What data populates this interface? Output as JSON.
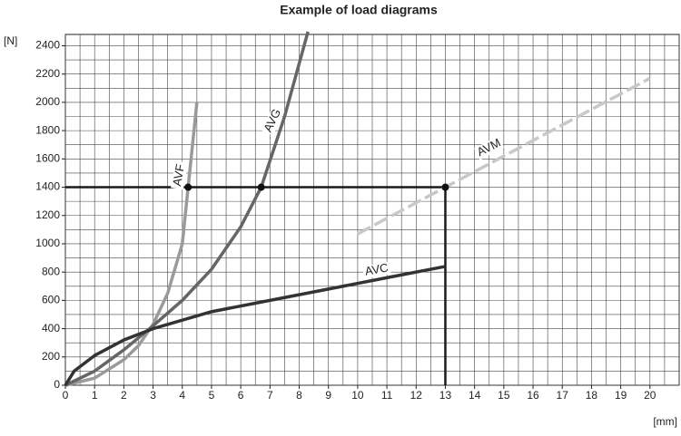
{
  "chart_data": {
    "type": "line",
    "title": "Example of load diagrams",
    "y_label": "[N]",
    "x_label": "[mm]",
    "xlim": [
      0,
      21
    ],
    "ylim": [
      0,
      2480
    ],
    "xticks": [
      0,
      1,
      2,
      3,
      4,
      5,
      6,
      7,
      8,
      9,
      10,
      11,
      12,
      13,
      14,
      15,
      16,
      17,
      18,
      19,
      20
    ],
    "yticks": [
      0,
      200,
      400,
      600,
      800,
      1000,
      1200,
      1400,
      1600,
      1800,
      2000,
      2200,
      2400
    ],
    "grid": true,
    "minor_grid": {
      "x": 0.5,
      "y": 100
    },
    "series": [
      {
        "name": "AVF",
        "color": "#9a9a9a",
        "x": [
          0,
          1,
          2,
          2.5,
          3,
          3.5,
          4,
          4.2,
          4.5
        ],
        "y": [
          0,
          50,
          180,
          280,
          430,
          650,
          1000,
          1400,
          2000
        ]
      },
      {
        "name": "AVG",
        "color": "#666666",
        "x": [
          0,
          1,
          2,
          3,
          4,
          5,
          6,
          6.7,
          7.5,
          8.3
        ],
        "y": [
          0,
          100,
          250,
          420,
          600,
          820,
          1120,
          1400,
          1900,
          2500
        ]
      },
      {
        "name": "AVC",
        "color": "#333333",
        "x": [
          0,
          0.3,
          1,
          2,
          3,
          5,
          7,
          9,
          11,
          13
        ],
        "y": [
          0,
          100,
          210,
          320,
          400,
          520,
          600,
          680,
          760,
          840
        ]
      },
      {
        "name": "AVM",
        "color": "#c8c8c8",
        "dashed": true,
        "x": [
          10,
          13,
          20
        ],
        "y": [
          1070,
          1400,
          2170
        ]
      }
    ],
    "guides": [
      {
        "x": [
          0,
          13
        ],
        "y": [
          1400,
          1400
        ]
      },
      {
        "x": [
          13,
          13
        ],
        "y": [
          0,
          1400
        ]
      }
    ],
    "markers": {
      "x": [
        4.2,
        6.7,
        13
      ],
      "y": [
        1400,
        1400,
        1400
      ]
    }
  }
}
